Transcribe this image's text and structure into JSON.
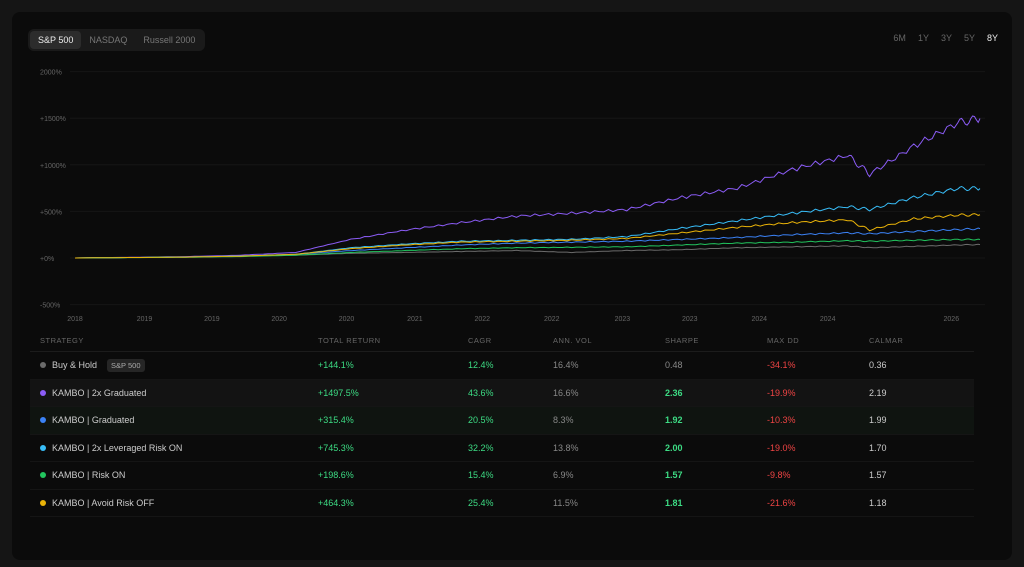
{
  "tabs": [
    "S&P 500",
    "NASDAQ",
    "Russell 2000"
  ],
  "ranges": [
    "6M",
    "1Y",
    "3Y",
    "5Y",
    "8Y"
  ],
  "chart_data": {
    "type": "line",
    "yticks": [
      "2000%",
      "+1500%",
      "+1000%",
      "+500%",
      "+0%",
      "-500%"
    ],
    "ytick_values": [
      2000,
      1500,
      1000,
      500,
      0,
      -500
    ],
    "xticks": [
      "2018",
      "2019",
      "2019",
      "2020",
      "2020",
      "2021",
      "2022",
      "2022",
      "2023",
      "2023",
      "2024",
      "2024",
      "2026"
    ],
    "xtick_years": [
      2018,
      2018.63,
      2019.24,
      2019.85,
      2020.46,
      2021.08,
      2021.69,
      2022.32,
      2022.96,
      2023.57,
      2024.2,
      2024.82,
      2025.94
    ],
    "ylim": [
      -500,
      2000
    ],
    "xlim": [
      2018,
      2026.2
    ],
    "x": [
      2018,
      2019,
      2019.5,
      2020,
      2020.5,
      2021,
      2021.5,
      2022,
      2022.5,
      2023,
      2023.5,
      2024,
      2024.5,
      2025,
      2025.2,
      2025.6,
      2026,
      2026.2
    ],
    "series": [
      {
        "name": "Buy & Hold",
        "color": "#6b6b6b",
        "values": [
          0,
          10,
          20,
          30,
          50,
          60,
          70,
          80,
          60,
          80,
          90,
          110,
          120,
          130,
          110,
          125,
          140,
          144
        ]
      },
      {
        "name": "KAMBO | 2x Graduated",
        "color": "#8b5cf6",
        "values": [
          0,
          15,
          30,
          60,
          200,
          300,
          380,
          450,
          480,
          520,
          650,
          750,
          950,
          1100,
          900,
          1200,
          1450,
          1497
        ]
      },
      {
        "name": "KAMBO | Graduated",
        "color": "#3b82f6",
        "values": [
          0,
          10,
          20,
          40,
          80,
          110,
          140,
          160,
          170,
          180,
          200,
          220,
          250,
          270,
          260,
          285,
          305,
          315
        ]
      },
      {
        "name": "KAMBO | 2x Leveraged Risk ON",
        "color": "#38bdf8",
        "values": [
          0,
          10,
          20,
          40,
          110,
          150,
          180,
          190,
          200,
          230,
          320,
          400,
          480,
          550,
          520,
          650,
          745,
          745
        ]
      },
      {
        "name": "KAMBO | Risk ON",
        "color": "#22c55e",
        "values": [
          0,
          8,
          15,
          30,
          60,
          80,
          100,
          110,
          115,
          120,
          140,
          160,
          170,
          185,
          180,
          190,
          198,
          199
        ]
      },
      {
        "name": "KAMBO | Avoid Risk OFF",
        "color": "#eab308",
        "values": [
          0,
          10,
          20,
          40,
          100,
          140,
          170,
          180,
          190,
          210,
          270,
          330,
          380,
          410,
          300,
          420,
          460,
          464
        ]
      }
    ]
  },
  "table": {
    "headers": [
      "STRATEGY",
      "TOTAL RETURN",
      "CAGR",
      "ANN. VOL",
      "SHARPE",
      "MAX DD",
      "CALMAR"
    ],
    "rows": [
      {
        "name": "Buy & Hold",
        "badge": "S&P 500",
        "color": "#6b6b6b",
        "total": "+144.1%",
        "cagr": "12.4%",
        "vol": "16.4%",
        "sharpe": "0.48",
        "dd": "-34.1%",
        "calmar": "0.36"
      },
      {
        "name": "KAMBO | 2x Graduated",
        "color": "#8b5cf6",
        "total": "+1497.5%",
        "cagr": "43.6%",
        "vol": "16.6%",
        "sharpe": "2.36",
        "dd": "-19.9%",
        "calmar": "2.19"
      },
      {
        "name": "KAMBO | Graduated",
        "color": "#3b82f6",
        "total": "+315.4%",
        "cagr": "20.5%",
        "vol": "8.3%",
        "sharpe": "1.92",
        "dd": "-10.3%",
        "calmar": "1.99"
      },
      {
        "name": "KAMBO | 2x Leveraged Risk ON",
        "color": "#38bdf8",
        "total": "+745.3%",
        "cagr": "32.2%",
        "vol": "13.8%",
        "sharpe": "2.00",
        "dd": "-19.0%",
        "calmar": "1.70"
      },
      {
        "name": "KAMBO | Risk ON",
        "color": "#22c55e",
        "total": "+198.6%",
        "cagr": "15.4%",
        "vol": "6.9%",
        "sharpe": "1.57",
        "dd": "-9.8%",
        "calmar": "1.57"
      },
      {
        "name": "KAMBO | Avoid Risk OFF",
        "color": "#eab308",
        "total": "+464.3%",
        "cagr": "25.4%",
        "vol": "11.5%",
        "sharpe": "1.81",
        "dd": "-21.6%",
        "calmar": "1.18"
      }
    ]
  }
}
